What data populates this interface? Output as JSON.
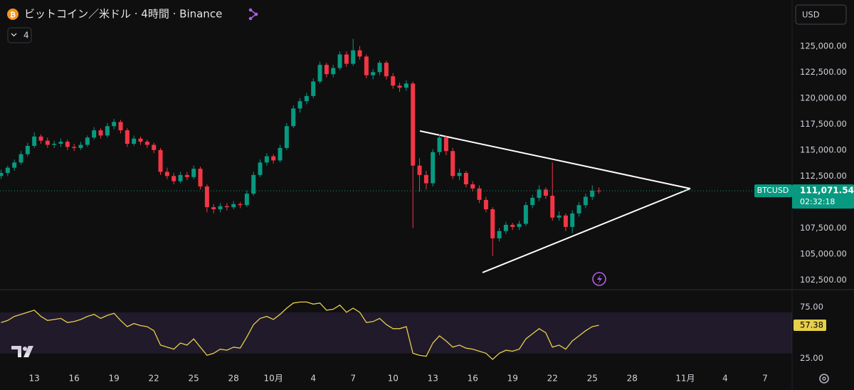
{
  "header": {
    "title": "ビットコイン／米ドル · 4時間 · Binance",
    "indicator_count": "4",
    "currency": "USD"
  },
  "chart_data": [
    {
      "type": "candlestick",
      "symbol": "BTCUSD",
      "up_color": "#089981",
      "down_color": "#f23645",
      "xlim": [
        -2.58,
        57.04
      ],
      "ylim": [
        101700,
        126700
      ],
      "yticks": [
        {
          "value": 102500,
          "label": "102,500.00"
        },
        {
          "value": 105000,
          "label": "105,000.00"
        },
        {
          "value": 107500,
          "label": "107,500.00"
        },
        {
          "value": 110000,
          "label": "110,000.00"
        },
        {
          "value": 112500,
          "label": "112,500.00"
        },
        {
          "value": 115000,
          "label": "115,000.00"
        },
        {
          "value": 117500,
          "label": "117,500.00"
        },
        {
          "value": 120000,
          "label": "120,000.00"
        },
        {
          "value": 122500,
          "label": "122,500.00"
        },
        {
          "value": 125000,
          "label": "125,000.00"
        }
      ],
      "xticks": [
        {
          "value": 0,
          "label": "13"
        },
        {
          "value": 3,
          "label": "16"
        },
        {
          "value": 6,
          "label": "19"
        },
        {
          "value": 9,
          "label": "22"
        },
        {
          "value": 12,
          "label": "25"
        },
        {
          "value": 15,
          "label": "28"
        },
        {
          "value": 18,
          "label": "10月"
        },
        {
          "value": 21,
          "label": "4"
        },
        {
          "value": 24,
          "label": "7"
        },
        {
          "value": 27,
          "label": "10"
        },
        {
          "value": 30,
          "label": "13"
        },
        {
          "value": 33,
          "label": "16"
        },
        {
          "value": 36,
          "label": "19"
        },
        {
          "value": 39,
          "label": "22"
        },
        {
          "value": 42,
          "label": "25"
        },
        {
          "value": 45,
          "label": "28"
        },
        {
          "value": 49,
          "label": "11月"
        },
        {
          "value": 52,
          "label": "4"
        },
        {
          "value": 55,
          "label": "7"
        }
      ],
      "candles": [
        [
          -2.5,
          112500,
          113100,
          112200,
          112800
        ],
        [
          -2,
          112800,
          113500,
          112500,
          113300
        ],
        [
          -1.5,
          113300,
          114100,
          113000,
          113800
        ],
        [
          -1,
          113800,
          114900,
          113600,
          114600
        ],
        [
          -0.5,
          114600,
          115700,
          114400,
          115400
        ],
        [
          0,
          115400,
          116700,
          115200,
          116300
        ],
        [
          0.5,
          116300,
          116500,
          115600,
          115900
        ],
        [
          1,
          115900,
          116200,
          115200,
          115500
        ],
        [
          1.5,
          115500,
          115900,
          115200,
          115600
        ],
        [
          2,
          115600,
          116100,
          115300,
          115800
        ],
        [
          2.5,
          115800,
          116000,
          115000,
          115300
        ],
        [
          3,
          115300,
          115600,
          114900,
          115200
        ],
        [
          3.5,
          115200,
          115800,
          115000,
          115500
        ],
        [
          4,
          115500,
          116400,
          115300,
          116200
        ],
        [
          4.5,
          116200,
          117200,
          116000,
          116900
        ],
        [
          5,
          116900,
          117100,
          116100,
          116400
        ],
        [
          5.5,
          116400,
          117600,
          116200,
          117300
        ],
        [
          6,
          117300,
          118000,
          117000,
          117700
        ],
        [
          6.5,
          117700,
          117900,
          116600,
          116900
        ],
        [
          7,
          116900,
          117100,
          115300,
          115600
        ],
        [
          7.5,
          115600,
          116400,
          115400,
          116100
        ],
        [
          8,
          116100,
          116300,
          115500,
          115800
        ],
        [
          8.5,
          115800,
          116000,
          115200,
          115500
        ],
        [
          9,
          115500,
          115700,
          114700,
          115000
        ],
        [
          9.5,
          115000,
          115200,
          112600,
          112900
        ],
        [
          10,
          112900,
          113300,
          112200,
          112500
        ],
        [
          10.5,
          112500,
          112800,
          111700,
          112000
        ],
        [
          11,
          112000,
          112900,
          111800,
          112600
        ],
        [
          11.5,
          112600,
          112900,
          112100,
          112400
        ],
        [
          12,
          112400,
          113500,
          112200,
          113200
        ],
        [
          12.5,
          113200,
          113400,
          111200,
          111500
        ],
        [
          13,
          111500,
          111700,
          109000,
          109500
        ],
        [
          13.5,
          109500,
          109800,
          108900,
          109300
        ],
        [
          14,
          109300,
          109900,
          109000,
          109600
        ],
        [
          14.5,
          109600,
          109900,
          109200,
          109500
        ],
        [
          15,
          109500,
          110100,
          109300,
          109800
        ],
        [
          15.5,
          109800,
          110000,
          109400,
          109700
        ],
        [
          16,
          109700,
          111100,
          109500,
          110800
        ],
        [
          16.5,
          110800,
          112900,
          110600,
          112600
        ],
        [
          17,
          112600,
          114100,
          112400,
          113800
        ],
        [
          17.5,
          113800,
          114700,
          113500,
          114400
        ],
        [
          18,
          114400,
          114600,
          113700,
          114000
        ],
        [
          18.5,
          114000,
          115500,
          113800,
          115200
        ],
        [
          19,
          115200,
          117600,
          115000,
          117300
        ],
        [
          19.5,
          117300,
          119300,
          117100,
          119000
        ],
        [
          20,
          119000,
          120000,
          118600,
          119700
        ],
        [
          20.5,
          119700,
          120500,
          119400,
          120200
        ],
        [
          21,
          120200,
          121900,
          120000,
          121600
        ],
        [
          21.5,
          121600,
          123500,
          121400,
          123200
        ],
        [
          22,
          123200,
          123400,
          122000,
          122300
        ],
        [
          22.5,
          122300,
          123200,
          122000,
          122900
        ],
        [
          23,
          122900,
          124500,
          122700,
          124200
        ],
        [
          23.5,
          124200,
          124500,
          123000,
          123300
        ],
        [
          24,
          123300,
          125700,
          123100,
          124600
        ],
        [
          24.5,
          124600,
          125000,
          123700,
          124000
        ],
        [
          25,
          124000,
          124200,
          121900,
          122200
        ],
        [
          25.5,
          122200,
          122800,
          121800,
          122500
        ],
        [
          26,
          122500,
          123600,
          122200,
          123400
        ],
        [
          26.5,
          123400,
          123600,
          121800,
          122100
        ],
        [
          27,
          122100,
          122400,
          120900,
          121200
        ],
        [
          27.5,
          121200,
          121500,
          120600,
          121000
        ],
        [
          28,
          121000,
          121700,
          120700,
          121400
        ],
        [
          28.5,
          121400,
          121600,
          107500,
          113500
        ],
        [
          29,
          113500,
          114200,
          111000,
          112600
        ],
        [
          29.5,
          112600,
          113000,
          111200,
          111800
        ],
        [
          30,
          111800,
          115100,
          111500,
          114800
        ],
        [
          30.5,
          114800,
          116500,
          114500,
          116200
        ],
        [
          31,
          116200,
          116400,
          114500,
          114900
        ],
        [
          31.5,
          114900,
          115200,
          112200,
          112500
        ],
        [
          32,
          112500,
          113200,
          112100,
          112800
        ],
        [
          32.5,
          112800,
          113000,
          111400,
          111700
        ],
        [
          33,
          111700,
          112000,
          111000,
          111300
        ],
        [
          33.5,
          111300,
          111600,
          109900,
          110200
        ],
        [
          34,
          110200,
          110500,
          109000,
          109300
        ],
        [
          34.5,
          109300,
          109500,
          104800,
          106500
        ],
        [
          35,
          106500,
          107500,
          106200,
          107200
        ],
        [
          35.5,
          107200,
          108100,
          106900,
          107800
        ],
        [
          36,
          107800,
          108000,
          107300,
          107600
        ],
        [
          36.5,
          107600,
          108200,
          107300,
          107900
        ],
        [
          37,
          107900,
          110000,
          107700,
          109700
        ],
        [
          37.5,
          109700,
          110700,
          109400,
          110400
        ],
        [
          38,
          110400,
          111600,
          110100,
          111200
        ],
        [
          38.5,
          111200,
          111400,
          110300,
          110600
        ],
        [
          39,
          110600,
          113800,
          108200,
          108500
        ],
        [
          39.5,
          108500,
          109100,
          108200,
          108700
        ],
        [
          40,
          108700,
          108900,
          107200,
          107600
        ],
        [
          40.5,
          107600,
          109200,
          107000,
          108900
        ],
        [
          41,
          108900,
          110000,
          108600,
          109700
        ],
        [
          41.5,
          109700,
          110800,
          109400,
          110500
        ],
        [
          42,
          110500,
          111600,
          110200,
          111100
        ],
        [
          42.5,
          111100,
          111400,
          110800,
          111071.54
        ]
      ],
      "last_price": 111071.54,
      "last_price_label": "111,071.54",
      "countdown": "02:32:18"
    },
    {
      "type": "line",
      "color": "#e6cf4a",
      "band_color": "rgba(126,87,194,0.16)",
      "band": [
        30,
        70
      ],
      "ylim": [
        15,
        90
      ],
      "yticks": [
        {
          "value": 75,
          "label": "75.00"
        },
        {
          "value": 25,
          "label": "25.00"
        }
      ],
      "values": [
        60,
        62,
        66,
        68,
        70,
        72,
        66,
        62,
        63,
        64,
        60,
        61,
        63,
        66,
        68,
        64,
        67,
        69,
        62,
        56,
        59,
        57,
        56,
        52,
        38,
        36,
        34,
        40,
        38,
        44,
        36,
        28,
        30,
        34,
        33,
        36,
        35,
        46,
        58,
        64,
        66,
        63,
        68,
        74,
        79,
        80,
        80,
        78,
        79,
        72,
        73,
        77,
        70,
        74,
        70,
        60,
        61,
        64,
        58,
        54,
        54,
        56,
        30,
        28,
        27,
        40,
        47,
        42,
        36,
        38,
        35,
        34,
        32,
        30,
        24,
        30,
        33,
        32,
        34,
        44,
        49,
        54,
        50,
        36,
        38,
        34,
        42,
        47,
        52,
        56,
        57.38
      ]
    }
  ]
}
